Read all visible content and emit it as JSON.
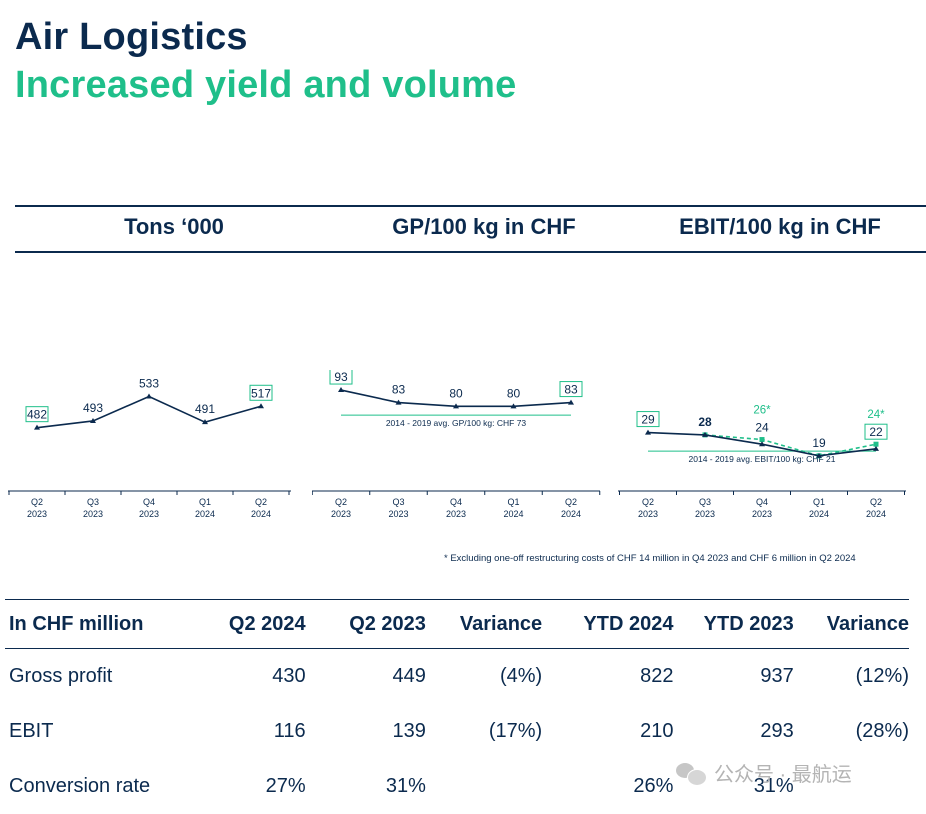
{
  "header": {
    "title": "Air Logistics",
    "subtitle": "Increased yield and volume"
  },
  "panels": [
    {
      "title": "Tons ‘000"
    },
    {
      "title": "GP/100 kg in CHF"
    },
    {
      "title": "EBIT/100 kg in CHF"
    }
  ],
  "chart_data": [
    {
      "type": "line",
      "title": "Tons ‘000",
      "categories": [
        "Q2 2023",
        "Q3 2023",
        "Q4 2023",
        "Q1 2024",
        "Q2 2024"
      ],
      "series": [
        {
          "name": "Tons",
          "values": [
            482,
            493,
            533,
            491,
            517
          ],
          "color": "#0b2a4e"
        }
      ],
      "boxed_labels": [
        0,
        4
      ],
      "ylim": [
        380,
        560
      ]
    },
    {
      "type": "line",
      "title": "GP/100 kg in CHF",
      "categories": [
        "Q2 2023",
        "Q3 2023",
        "Q4 2023",
        "Q1 2024",
        "Q2 2024"
      ],
      "series": [
        {
          "name": "GP/100 kg",
          "values": [
            93,
            83,
            80,
            80,
            83
          ],
          "color": "#0b2a4e"
        }
      ],
      "boxed_labels": [
        0,
        4
      ],
      "reference_line": {
        "value": 73,
        "label": "2014 - 2019 avg. GP/100 kg: CHF 73",
        "color": "#1fbf8a"
      },
      "ylim": [
        30,
        105
      ]
    },
    {
      "type": "line",
      "title": "EBIT/100 kg in CHF",
      "categories": [
        "Q2 2023",
        "Q3 2023",
        "Q4 2023",
        "Q1 2024",
        "Q2 2024"
      ],
      "series": [
        {
          "name": "EBIT/100 kg",
          "values": [
            29,
            28,
            24,
            19,
            22
          ],
          "color": "#0b2a4e",
          "style": "solid"
        },
        {
          "name": "EBIT/100 kg excl. one-off restructuring costs",
          "values": [
            null,
            28,
            26,
            19,
            24
          ],
          "color": "#1fbf8a",
          "style": "dashed",
          "label_suffix": "*"
        }
      ],
      "boxed_labels": [
        0,
        4
      ],
      "reference_line": {
        "value": 21,
        "label": "2014 - 2019 avg. EBIT/100 kg: CHF 21",
        "color": "#1fbf8a"
      },
      "ylim": [
        0,
        40
      ]
    }
  ],
  "footnote": "* Excluding one-off restructuring costs of CHF 14 million in Q4 2023 and CHF 6 million in Q2 2024",
  "table": {
    "headers": [
      "In CHF million",
      "Q2 2024",
      "Q2 2023",
      "Variance",
      "YTD 2024",
      "YTD 2023",
      "Variance"
    ],
    "rows": [
      [
        "Gross profit",
        "430",
        "449",
        "(4%)",
        "822",
        "937",
        "(12%)"
      ],
      [
        "EBIT",
        "116",
        "139",
        "(17%)",
        "210",
        "293",
        "(28%)"
      ],
      [
        "Conversion rate",
        "27%",
        "31%",
        "",
        "26%",
        "31%",
        ""
      ]
    ]
  },
  "watermark": {
    "text": "公众号 · 最航运"
  },
  "colors": {
    "navy": "#0b2a4e",
    "green": "#1fbf8a"
  }
}
